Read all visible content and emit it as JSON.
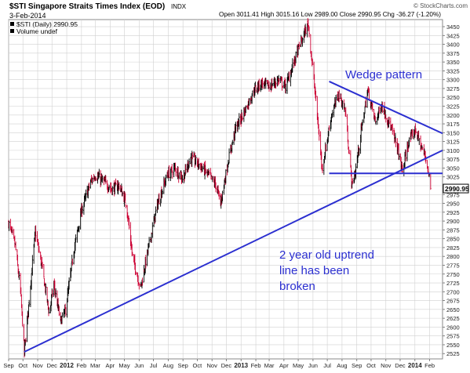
{
  "header": {
    "symbol_title": "$STI Singapore Straits Times Index (EOD)",
    "exchange": "INDX",
    "watermark": "© StockCharts.com",
    "date": "3-Feb-2014",
    "ohlc": "Open 3011.41  High 3015.16  Low 2989.00  Close 2990.95  Chg -36.27 (-1.20%)",
    "legend_series": "$STI (Daily) 2990.95",
    "legend_volume": "Volume undef"
  },
  "colors": {
    "up_bar": "#000000",
    "down_bar": "#cc0033",
    "annotation": "#2b2fd0",
    "grid": "#d0d0d0",
    "axis_text": "#222222"
  },
  "annotations": {
    "wedge_label": "Wedge pattern",
    "uptrend_label_1": "2 year old uptrend",
    "uptrend_label_2": "line has been",
    "uptrend_label_3": "broken"
  },
  "last_price_label": "2990.95",
  "chart_data": {
    "type": "ohlc_bar",
    "title": "$STI Singapore Straits Times Index (EOD)",
    "series_name": "$STI (Daily)",
    "ylim": [
      2510,
      3470
    ],
    "y_axis_position": "right",
    "y_ticks": [
      2525,
      2550,
      2575,
      2600,
      2625,
      2650,
      2675,
      2700,
      2725,
      2750,
      2775,
      2800,
      2825,
      2850,
      2875,
      2900,
      2925,
      2950,
      2975,
      3000,
      3025,
      3050,
      3075,
      3100,
      3125,
      3150,
      3175,
      3200,
      3225,
      3250,
      3275,
      3300,
      3325,
      3350,
      3375,
      3400,
      3425,
      3450
    ],
    "y_tick_labels": [
      "2525",
      "2550",
      "2575",
      "2600",
      "2625",
      "2650",
      "2675",
      "2700",
      "2725",
      "2750",
      "2775",
      "2800",
      "2825",
      "2850",
      "2875",
      "2900",
      "2925",
      "2950",
      "2975",
      "3000",
      "3025",
      "3050",
      "3075",
      "3100",
      "3125",
      "3150",
      "3175",
      "3200",
      "3225",
      "3250",
      "3275",
      "3300",
      "3325",
      "3350",
      "3375",
      "3400",
      "3425",
      "3450"
    ],
    "x_range": [
      "2011-09-01",
      "2014-02-28"
    ],
    "x_ticks": [
      {
        "label": "Sep",
        "date": "2011-09-01",
        "bold": false
      },
      {
        "label": "Oct",
        "date": "2011-10-01",
        "bold": false
      },
      {
        "label": "Nov",
        "date": "2011-11-01",
        "bold": false
      },
      {
        "label": "Dec",
        "date": "2011-12-01",
        "bold": false
      },
      {
        "label": "2012",
        "date": "2012-01-01",
        "bold": true
      },
      {
        "label": "Feb",
        "date": "2012-02-01",
        "bold": false
      },
      {
        "label": "Mar",
        "date": "2012-03-01",
        "bold": false
      },
      {
        "label": "Apr",
        "date": "2012-04-01",
        "bold": false
      },
      {
        "label": "May",
        "date": "2012-05-01",
        "bold": false
      },
      {
        "label": "Jun",
        "date": "2012-06-01",
        "bold": false
      },
      {
        "label": "Jul",
        "date": "2012-07-01",
        "bold": false
      },
      {
        "label": "Aug",
        "date": "2012-08-01",
        "bold": false
      },
      {
        "label": "Sep",
        "date": "2012-09-01",
        "bold": false
      },
      {
        "label": "Oct",
        "date": "2012-10-01",
        "bold": false
      },
      {
        "label": "Nov",
        "date": "2012-11-01",
        "bold": false
      },
      {
        "label": "Dec",
        "date": "2012-12-01",
        "bold": false
      },
      {
        "label": "2013",
        "date": "2013-01-01",
        "bold": true
      },
      {
        "label": "Feb",
        "date": "2013-02-01",
        "bold": false
      },
      {
        "label": "Mar",
        "date": "2013-03-01",
        "bold": false
      },
      {
        "label": "Apr",
        "date": "2013-04-01",
        "bold": false
      },
      {
        "label": "May",
        "date": "2013-05-01",
        "bold": false
      },
      {
        "label": "Jun",
        "date": "2013-06-01",
        "bold": false
      },
      {
        "label": "Jul",
        "date": "2013-07-01",
        "bold": false
      },
      {
        "label": "Aug",
        "date": "2013-08-01",
        "bold": false
      },
      {
        "label": "Sep",
        "date": "2013-09-01",
        "bold": false
      },
      {
        "label": "Oct",
        "date": "2013-10-01",
        "bold": false
      },
      {
        "label": "Nov",
        "date": "2013-11-01",
        "bold": false
      },
      {
        "label": "Dec",
        "date": "2013-12-01",
        "bold": false
      },
      {
        "label": "2014",
        "date": "2014-01-01",
        "bold": true
      },
      {
        "label": "Feb",
        "date": "2014-02-01",
        "bold": false
      }
    ],
    "price_path": [
      {
        "date": "2011-09-01",
        "close": 2895
      },
      {
        "date": "2011-09-15",
        "close": 2830
      },
      {
        "date": "2011-09-26",
        "close": 2700
      },
      {
        "date": "2011-10-04",
        "close": 2528
      },
      {
        "date": "2011-10-15",
        "close": 2690
      },
      {
        "date": "2011-10-27",
        "close": 2870
      },
      {
        "date": "2011-11-10",
        "close": 2770
      },
      {
        "date": "2011-11-25",
        "close": 2640
      },
      {
        "date": "2011-12-05",
        "close": 2720
      },
      {
        "date": "2011-12-19",
        "close": 2615
      },
      {
        "date": "2011-12-30",
        "close": 2650
      },
      {
        "date": "2012-01-15",
        "close": 2810
      },
      {
        "date": "2012-02-01",
        "close": 2930
      },
      {
        "date": "2012-02-20",
        "close": 3010
      },
      {
        "date": "2012-03-01",
        "close": 3030
      },
      {
        "date": "2012-03-20",
        "close": 3010
      },
      {
        "date": "2012-04-05",
        "close": 2990
      },
      {
        "date": "2012-04-20",
        "close": 3000
      },
      {
        "date": "2012-05-05",
        "close": 2950
      },
      {
        "date": "2012-05-18",
        "close": 2800
      },
      {
        "date": "2012-06-04",
        "close": 2710
      },
      {
        "date": "2012-06-20",
        "close": 2820
      },
      {
        "date": "2012-07-10",
        "close": 2950
      },
      {
        "date": "2012-07-30",
        "close": 3030
      },
      {
        "date": "2012-08-15",
        "close": 3050
      },
      {
        "date": "2012-09-01",
        "close": 3020
      },
      {
        "date": "2012-09-17",
        "close": 3080
      },
      {
        "date": "2012-10-05",
        "close": 3060
      },
      {
        "date": "2012-10-25",
        "close": 3030
      },
      {
        "date": "2012-11-10",
        "close": 3000
      },
      {
        "date": "2012-11-19",
        "close": 2950
      },
      {
        "date": "2012-12-05",
        "close": 3070
      },
      {
        "date": "2012-12-20",
        "close": 3160
      },
      {
        "date": "2013-01-10",
        "close": 3215
      },
      {
        "date": "2013-01-28",
        "close": 3270
      },
      {
        "date": "2013-02-12",
        "close": 3290
      },
      {
        "date": "2013-03-01",
        "close": 3280
      },
      {
        "date": "2013-03-20",
        "close": 3300
      },
      {
        "date": "2013-04-05",
        "close": 3280
      },
      {
        "date": "2013-04-22",
        "close": 3350
      },
      {
        "date": "2013-05-05",
        "close": 3400
      },
      {
        "date": "2013-05-22",
        "close": 3458
      },
      {
        "date": "2013-06-05",
        "close": 3270
      },
      {
        "date": "2013-06-20",
        "close": 3050
      },
      {
        "date": "2013-06-27",
        "close": 3100
      },
      {
        "date": "2013-07-10",
        "close": 3200
      },
      {
        "date": "2013-07-25",
        "close": 3260
      },
      {
        "date": "2013-08-08",
        "close": 3210
      },
      {
        "date": "2013-08-22",
        "close": 3000
      },
      {
        "date": "2013-08-29",
        "close": 3040
      },
      {
        "date": "2013-09-12",
        "close": 3170
      },
      {
        "date": "2013-09-24",
        "close": 3270
      },
      {
        "date": "2013-10-10",
        "close": 3180
      },
      {
        "date": "2013-10-23",
        "close": 3230
      },
      {
        "date": "2013-11-10",
        "close": 3170
      },
      {
        "date": "2013-11-25",
        "close": 3110
      },
      {
        "date": "2013-12-06",
        "close": 3040
      },
      {
        "date": "2013-12-18",
        "close": 3120
      },
      {
        "date": "2014-01-02",
        "close": 3160
      },
      {
        "date": "2014-01-14",
        "close": 3110
      },
      {
        "date": "2014-01-24",
        "close": 3080
      },
      {
        "date": "2014-01-31",
        "close": 3025
      },
      {
        "date": "2014-02-03",
        "close": 2990.95
      }
    ],
    "trendlines": [
      {
        "name": "uptrend",
        "points": [
          {
            "date": "2011-10-04",
            "value": 2530
          },
          {
            "date": "2014-02-28",
            "value": 3100
          }
        ]
      },
      {
        "name": "wedge-upper",
        "points": [
          {
            "date": "2013-07-05",
            "value": 3295
          },
          {
            "date": "2014-02-28",
            "value": 3148
          }
        ]
      },
      {
        "name": "wedge-support",
        "points": [
          {
            "date": "2013-07-05",
            "value": 3035
          },
          {
            "date": "2014-02-28",
            "value": 3035
          }
        ]
      }
    ],
    "last_value": 2990.95
  }
}
